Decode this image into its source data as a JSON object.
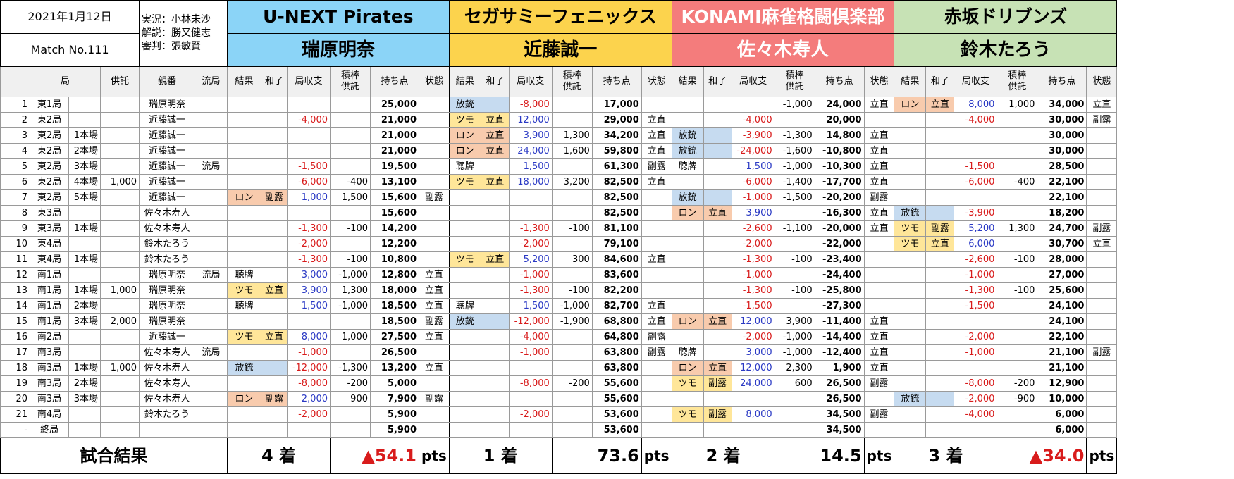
{
  "meta": {
    "date": "2021年1月12日",
    "match": "Match No.111",
    "commentary": "実況：小林未沙",
    "analysis": "解説：勝又健志",
    "referee": "審判：張敏賢"
  },
  "teams": [
    {
      "team": "U-NEXT Pirates",
      "player": "瑞原明奈"
    },
    {
      "team": "セガサミーフェニックス",
      "player": "近藤誠一"
    },
    {
      "team": "KONAMI麻雀格闘倶楽部",
      "player": "佐々木寿人"
    },
    {
      "team": "赤坂ドリブンズ",
      "player": "鈴木たろう"
    }
  ],
  "headers": {
    "round": "局",
    "deposit": "供託",
    "dealer": "親番",
    "draw": "流局",
    "team_cols": [
      "結果",
      "和了",
      "局収支",
      "積棒\n供託",
      "持ち点",
      "状態"
    ]
  },
  "rows": [
    {
      "no": "1",
      "round": "東1局",
      "honba": "",
      "deposit": "",
      "dealer": "瑞原明奈",
      "draw": "",
      "p": [
        [
          "",
          "",
          "",
          "",
          "25,000",
          ""
        ],
        [
          "放銃",
          "",
          "-8,000",
          "",
          "17,000",
          ""
        ],
        [
          "",
          "",
          "",
          "-1,000",
          "24,000",
          "立直"
        ],
        [
          "ロン",
          "立直",
          "8,000",
          "1,000",
          "34,000",
          "立直"
        ]
      ]
    },
    {
      "no": "2",
      "round": "東2局",
      "honba": "",
      "deposit": "",
      "dealer": "近藤誠一",
      "draw": "",
      "p": [
        [
          "",
          "",
          "-4,000",
          "",
          "21,000",
          ""
        ],
        [
          "ツモ",
          "立直",
          "12,000",
          "",
          "29,000",
          "立直"
        ],
        [
          "",
          "",
          "-4,000",
          "",
          "20,000",
          ""
        ],
        [
          "",
          "",
          "-4,000",
          "",
          "30,000",
          "副露"
        ]
      ]
    },
    {
      "no": "3",
      "round": "東2局",
      "honba": "1本場",
      "deposit": "",
      "dealer": "近藤誠一",
      "draw": "",
      "p": [
        [
          "",
          "",
          "",
          "",
          "21,000",
          ""
        ],
        [
          "ロン",
          "立直",
          "3,900",
          "1,300",
          "34,200",
          "立直"
        ],
        [
          "放銃",
          "",
          "-3,900",
          "-1,300",
          "14,800",
          "立直"
        ],
        [
          "",
          "",
          "",
          "",
          "30,000",
          ""
        ]
      ]
    },
    {
      "no": "4",
      "round": "東2局",
      "honba": "2本場",
      "deposit": "",
      "dealer": "近藤誠一",
      "draw": "",
      "p": [
        [
          "",
          "",
          "",
          "",
          "21,000",
          ""
        ],
        [
          "ロン",
          "立直",
          "24,000",
          "1,600",
          "59,800",
          "立直"
        ],
        [
          "放銃",
          "",
          "-24,000",
          "-1,600",
          "-10,800",
          "立直"
        ],
        [
          "",
          "",
          "",
          "",
          "30,000",
          ""
        ]
      ]
    },
    {
      "no": "5",
      "round": "東2局",
      "honba": "3本場",
      "deposit": "",
      "dealer": "近藤誠一",
      "draw": "流局",
      "p": [
        [
          "",
          "",
          "-1,500",
          "",
          "19,500",
          ""
        ],
        [
          "聴牌",
          "",
          "1,500",
          "",
          "61,300",
          "副露"
        ],
        [
          "聴牌",
          "",
          "1,500",
          "-1,000",
          "-10,300",
          "立直"
        ],
        [
          "",
          "",
          "-1,500",
          "",
          "28,500",
          ""
        ]
      ]
    },
    {
      "no": "6",
      "round": "東2局",
      "honba": "4本場",
      "deposit": "1,000",
      "dealer": "近藤誠一",
      "draw": "",
      "p": [
        [
          "",
          "",
          "-6,000",
          "-400",
          "13,100",
          ""
        ],
        [
          "ツモ",
          "立直",
          "18,000",
          "3,200",
          "82,500",
          "立直"
        ],
        [
          "",
          "",
          "-6,000",
          "-1,400",
          "-17,700",
          "立直"
        ],
        [
          "",
          "",
          "-6,000",
          "-400",
          "22,100",
          ""
        ]
      ]
    },
    {
      "no": "7",
      "round": "東2局",
      "honba": "5本場",
      "deposit": "",
      "dealer": "近藤誠一",
      "draw": "",
      "p": [
        [
          "ロン",
          "副露",
          "1,000",
          "1,500",
          "15,600",
          "副露"
        ],
        [
          "",
          "",
          "",
          "",
          "82,500",
          ""
        ],
        [
          "放銃",
          "",
          "-1,000",
          "-1,500",
          "-20,200",
          "副露"
        ],
        [
          "",
          "",
          "",
          "",
          "22,100",
          ""
        ]
      ]
    },
    {
      "no": "8",
      "round": "東3局",
      "honba": "",
      "deposit": "",
      "dealer": "佐々木寿人",
      "draw": "",
      "p": [
        [
          "",
          "",
          "",
          "",
          "15,600",
          ""
        ],
        [
          "",
          "",
          "",
          "",
          "82,500",
          ""
        ],
        [
          "ロン",
          "立直",
          "3,900",
          "",
          "-16,300",
          "立直"
        ],
        [
          "放銃",
          "",
          "-3,900",
          "",
          "18,200",
          ""
        ]
      ]
    },
    {
      "no": "9",
      "round": "東3局",
      "honba": "1本場",
      "deposit": "",
      "dealer": "佐々木寿人",
      "draw": "",
      "p": [
        [
          "",
          "",
          "-1,300",
          "-100",
          "14,200",
          ""
        ],
        [
          "",
          "",
          "-1,300",
          "-100",
          "81,100",
          ""
        ],
        [
          "",
          "",
          "-2,600",
          "-1,100",
          "-20,000",
          "立直"
        ],
        [
          "ツモ",
          "副露",
          "5,200",
          "1,300",
          "24,700",
          "副露"
        ]
      ]
    },
    {
      "no": "10",
      "round": "東4局",
      "honba": "",
      "deposit": "",
      "dealer": "鈴木たろう",
      "draw": "",
      "p": [
        [
          "",
          "",
          "-2,000",
          "",
          "12,200",
          ""
        ],
        [
          "",
          "",
          "-2,000",
          "",
          "79,100",
          ""
        ],
        [
          "",
          "",
          "-2,000",
          "",
          "-22,000",
          ""
        ],
        [
          "ツモ",
          "立直",
          "6,000",
          "",
          "30,700",
          "立直"
        ]
      ]
    },
    {
      "no": "11",
      "round": "東4局",
      "honba": "1本場",
      "deposit": "",
      "dealer": "鈴木たろう",
      "draw": "",
      "p": [
        [
          "",
          "",
          "-1,300",
          "-100",
          "10,800",
          ""
        ],
        [
          "ツモ",
          "立直",
          "5,200",
          "300",
          "84,600",
          "立直"
        ],
        [
          "",
          "",
          "-1,300",
          "-100",
          "-23,400",
          ""
        ],
        [
          "",
          "",
          "-2,600",
          "-100",
          "28,000",
          ""
        ]
      ]
    },
    {
      "no": "12",
      "round": "南1局",
      "honba": "",
      "deposit": "",
      "dealer": "瑞原明奈",
      "draw": "流局",
      "p": [
        [
          "聴牌",
          "",
          "3,000",
          "-1,000",
          "12,800",
          "立直"
        ],
        [
          "",
          "",
          "-1,000",
          "",
          "83,600",
          ""
        ],
        [
          "",
          "",
          "-1,000",
          "",
          "-24,400",
          ""
        ],
        [
          "",
          "",
          "-1,000",
          "",
          "27,000",
          ""
        ]
      ]
    },
    {
      "no": "13",
      "round": "南1局",
      "honba": "1本場",
      "deposit": "1,000",
      "dealer": "瑞原明奈",
      "draw": "",
      "p": [
        [
          "ツモ",
          "立直",
          "3,900",
          "1,300",
          "18,000",
          "立直"
        ],
        [
          "",
          "",
          "-1,300",
          "-100",
          "82,200",
          ""
        ],
        [
          "",
          "",
          "-1,300",
          "-100",
          "-25,800",
          ""
        ],
        [
          "",
          "",
          "-1,300",
          "-100",
          "25,600",
          ""
        ]
      ]
    },
    {
      "no": "14",
      "round": "南1局",
      "honba": "2本場",
      "deposit": "",
      "dealer": "瑞原明奈",
      "draw": "",
      "p": [
        [
          "聴牌",
          "",
          "1,500",
          "-1,000",
          "18,500",
          "立直"
        ],
        [
          "聴牌",
          "",
          "1,500",
          "-1,000",
          "82,700",
          "立直"
        ],
        [
          "",
          "",
          "-1,500",
          "",
          "-27,300",
          ""
        ],
        [
          "",
          "",
          "-1,500",
          "",
          "24,100",
          ""
        ]
      ]
    },
    {
      "no": "15",
      "round": "南1局",
      "honba": "3本場",
      "deposit": "2,000",
      "dealer": "瑞原明奈",
      "draw": "",
      "p": [
        [
          "",
          "",
          "",
          "",
          "18,500",
          "副露"
        ],
        [
          "放銃",
          "",
          "-12,000",
          "-1,900",
          "68,800",
          "立直"
        ],
        [
          "ロン",
          "立直",
          "12,000",
          "3,900",
          "-11,400",
          "立直"
        ],
        [
          "",
          "",
          "",
          "",
          "24,100",
          ""
        ]
      ]
    },
    {
      "no": "16",
      "round": "南2局",
      "honba": "",
      "deposit": "",
      "dealer": "近藤誠一",
      "draw": "",
      "p": [
        [
          "ツモ",
          "立直",
          "8,000",
          "1,000",
          "27,500",
          "立直"
        ],
        [
          "",
          "",
          "-4,000",
          "",
          "64,800",
          "副露"
        ],
        [
          "",
          "",
          "-2,000",
          "-1,000",
          "-14,400",
          "立直"
        ],
        [
          "",
          "",
          "-2,000",
          "",
          "22,100",
          ""
        ]
      ]
    },
    {
      "no": "17",
      "round": "南3局",
      "honba": "",
      "deposit": "",
      "dealer": "佐々木寿人",
      "draw": "流局",
      "p": [
        [
          "",
          "",
          "-1,000",
          "",
          "26,500",
          ""
        ],
        [
          "",
          "",
          "-1,000",
          "",
          "63,800",
          "副露"
        ],
        [
          "聴牌",
          "",
          "3,000",
          "-1,000",
          "-12,400",
          "立直"
        ],
        [
          "",
          "",
          "-1,000",
          "",
          "21,100",
          "副露"
        ]
      ]
    },
    {
      "no": "18",
      "round": "南3局",
      "honba": "1本場",
      "deposit": "1,000",
      "dealer": "佐々木寿人",
      "draw": "",
      "p": [
        [
          "放銃",
          "",
          "-12,000",
          "-1,300",
          "13,200",
          "立直"
        ],
        [
          "",
          "",
          "",
          "",
          "63,800",
          ""
        ],
        [
          "ロン",
          "立直",
          "12,000",
          "2,300",
          "1,900",
          "立直"
        ],
        [
          "",
          "",
          "",
          "",
          "21,100",
          ""
        ]
      ]
    },
    {
      "no": "19",
      "round": "南3局",
      "honba": "2本場",
      "deposit": "",
      "dealer": "佐々木寿人",
      "draw": "",
      "p": [
        [
          "",
          "",
          "-8,000",
          "-200",
          "5,000",
          ""
        ],
        [
          "",
          "",
          "-8,000",
          "-200",
          "55,600",
          ""
        ],
        [
          "ツモ",
          "副露",
          "24,000",
          "600",
          "26,500",
          "副露"
        ],
        [
          "",
          "",
          "-8,000",
          "-200",
          "12,900",
          ""
        ]
      ]
    },
    {
      "no": "20",
      "round": "南3局",
      "honba": "3本場",
      "deposit": "",
      "dealer": "佐々木寿人",
      "draw": "",
      "p": [
        [
          "ロン",
          "副露",
          "2,000",
          "900",
          "7,900",
          "副露"
        ],
        [
          "",
          "",
          "",
          "",
          "55,600",
          ""
        ],
        [
          "",
          "",
          "",
          "",
          "26,500",
          ""
        ],
        [
          "放銃",
          "",
          "-2,000",
          "-900",
          "10,000",
          ""
        ]
      ]
    },
    {
      "no": "21",
      "round": "南4局",
      "honba": "",
      "deposit": "",
      "dealer": "鈴木たろう",
      "draw": "",
      "p": [
        [
          "",
          "",
          "-2,000",
          "",
          "5,900",
          ""
        ],
        [
          "",
          "",
          "-2,000",
          "",
          "53,600",
          ""
        ],
        [
          "ツモ",
          "副露",
          "8,000",
          "",
          "34,500",
          "副露"
        ],
        [
          "",
          "",
          "-4,000",
          "",
          "6,000",
          ""
        ]
      ]
    },
    {
      "no": "-",
      "round": "終局",
      "honba": "",
      "deposit": "",
      "dealer": "",
      "draw": "",
      "p": [
        [
          "",
          "",
          "",
          "",
          "5,900",
          ""
        ],
        [
          "",
          "",
          "",
          "",
          "53,600",
          ""
        ],
        [
          "",
          "",
          "",
          "",
          "34,500",
          ""
        ],
        [
          "",
          "",
          "",
          "",
          "6,000",
          ""
        ]
      ]
    }
  ],
  "results": {
    "label": "試合結果",
    "teams": [
      {
        "place": "4 着",
        "pts": "▲54.1",
        "unit": "pts",
        "negative": true
      },
      {
        "place": "1 着",
        "pts": "73.6",
        "unit": "pts",
        "negative": false
      },
      {
        "place": "2 着",
        "pts": "14.5",
        "unit": "pts",
        "negative": false
      },
      {
        "place": "3 着",
        "pts": "▲34.0",
        "unit": "pts",
        "negative": true
      }
    ]
  },
  "colors": {
    "pirates": "#8bd4f7",
    "phoenix": "#fcd34d",
    "konami": "#f47c7c",
    "drivens": "#c7e2b5",
    "positive": "#2a39c4",
    "negative": "#d81b1b"
  }
}
